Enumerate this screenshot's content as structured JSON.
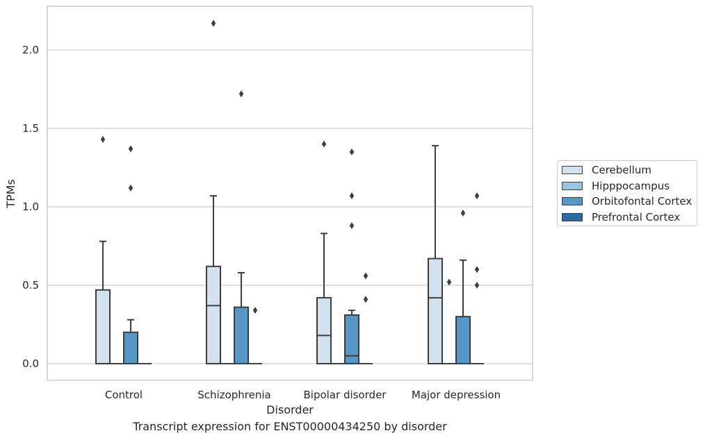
{
  "chart_data": {
    "type": "box",
    "title": "",
    "caption": "Transcript expression for ENST00000434250 by disorder",
    "xlabel": "Disorder",
    "ylabel": "TPMs",
    "ylim": [
      -0.1,
      2.28
    ],
    "yticks": [
      "0.0",
      "0.5",
      "1.0",
      "1.5",
      "2.0"
    ],
    "grid": true,
    "legend_position": "right",
    "categories": [
      "Control",
      "Schizophrenia",
      "Bipolar disorder",
      "Major depression"
    ],
    "series": [
      {
        "name": "Cerebellum",
        "color": "#d3e1ef",
        "boxes": [
          {
            "q1": 0,
            "median": 0,
            "q3": 0.47,
            "whisker_low": 0,
            "whisker_high": 0.78,
            "outliers": [
              1.43
            ]
          },
          {
            "q1": 0,
            "median": 0.37,
            "q3": 0.62,
            "whisker_low": 0,
            "whisker_high": 1.07,
            "outliers": [
              2.17
            ]
          },
          {
            "q1": 0,
            "median": 0.18,
            "q3": 0.42,
            "whisker_low": 0,
            "whisker_high": 0.83,
            "outliers": [
              1.4
            ]
          },
          {
            "q1": 0,
            "median": 0.42,
            "q3": 0.67,
            "whisker_low": 0,
            "whisker_high": 1.39,
            "outliers": []
          }
        ]
      },
      {
        "name": "Hipppocampus",
        "color": "#9ac3dd",
        "boxes": [
          {
            "q1": 0,
            "median": 0,
            "q3": 0,
            "whisker_low": 0,
            "whisker_high": 0,
            "outliers": []
          },
          {
            "q1": 0,
            "median": 0,
            "q3": 0,
            "whisker_low": 0,
            "whisker_high": 0,
            "outliers": []
          },
          {
            "q1": 0,
            "median": 0,
            "q3": 0,
            "whisker_low": 0,
            "whisker_high": 0,
            "outliers": []
          },
          {
            "q1": 0,
            "median": 0,
            "q3": 0,
            "whisker_low": 0,
            "whisker_high": 0,
            "outliers": [
              0.52
            ]
          }
        ]
      },
      {
        "name": "Orbitofontal Cortex",
        "color": "#5597c5",
        "boxes": [
          {
            "q1": 0,
            "median": 0,
            "q3": 0.2,
            "whisker_low": 0,
            "whisker_high": 0.28,
            "outliers": [
              1.12,
              1.37
            ]
          },
          {
            "q1": 0,
            "median": 0,
            "q3": 0.36,
            "whisker_low": 0,
            "whisker_high": 0.58,
            "outliers": [
              1.72
            ]
          },
          {
            "q1": 0,
            "median": 0.05,
            "q3": 0.31,
            "whisker_low": 0,
            "whisker_high": 0.34,
            "outliers": [
              0.88,
              1.07,
              1.35
            ]
          },
          {
            "q1": 0,
            "median": 0,
            "q3": 0.3,
            "whisker_low": 0,
            "whisker_high": 0.66,
            "outliers": [
              0.96
            ]
          }
        ]
      },
      {
        "name": "Prefrontal Cortex",
        "color": "#2b6ca8",
        "boxes": [
          {
            "q1": 0,
            "median": 0,
            "q3": 0,
            "whisker_low": 0,
            "whisker_high": 0,
            "outliers": []
          },
          {
            "q1": 0,
            "median": 0,
            "q3": 0,
            "whisker_low": 0,
            "whisker_high": 0,
            "outliers": [
              0.34
            ]
          },
          {
            "q1": 0,
            "median": 0,
            "q3": 0,
            "whisker_low": 0,
            "whisker_high": 0,
            "outliers": [
              0.41,
              0.56
            ]
          },
          {
            "q1": 0,
            "median": 0,
            "q3": 0,
            "whisker_low": 0,
            "whisker_high": 0,
            "outliers": [
              0.5,
              0.6,
              1.07
            ]
          }
        ]
      }
    ]
  }
}
